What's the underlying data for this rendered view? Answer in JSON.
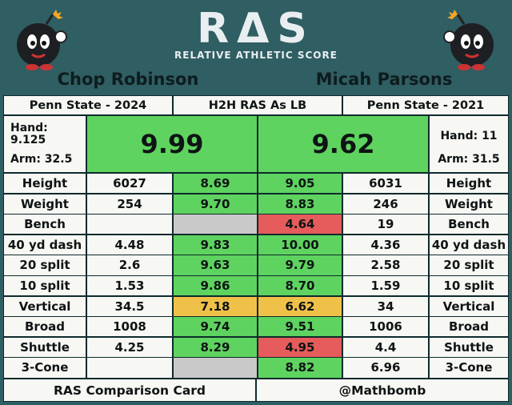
{
  "brand": {
    "logo": "RΔS",
    "tagline": "RELATIVE ATHLETIC SCORE"
  },
  "players": {
    "left": {
      "name": "Chop Robinson",
      "school": "Penn State - 2024",
      "hand_label": "Hand:",
      "hand_value": "9.125",
      "arm": "Arm: 32.5",
      "score": "9.99"
    },
    "right": {
      "name": "Micah Parsons",
      "school": "Penn State - 2021",
      "hand": "Hand: 11",
      "arm": "Arm: 31.5",
      "score": "9.62"
    }
  },
  "center_header": "H2H RAS As LB",
  "colors": {
    "background": "#2f5e63",
    "green": "#5ed35f",
    "grey": "#c9c9c9",
    "red": "#e65b5b",
    "yellow": "#f0c148"
  },
  "rows": [
    {
      "label": "Height",
      "left_val": "6027",
      "left_score": "8.69",
      "left_color": "green",
      "right_score": "9.05",
      "right_color": "green",
      "right_val": "6031"
    },
    {
      "label": "Weight",
      "left_val": "254",
      "left_score": "9.70",
      "left_color": "green",
      "right_score": "8.83",
      "right_color": "green",
      "right_val": "246"
    },
    {
      "label": "Bench",
      "left_val": "",
      "left_score": "",
      "left_color": "grey",
      "right_score": "4.64",
      "right_color": "red",
      "right_val": "19"
    },
    {
      "label": "40 yd dash",
      "left_val": "4.48",
      "left_score": "9.83",
      "left_color": "green",
      "right_score": "10.00",
      "right_color": "green",
      "right_val": "4.36"
    },
    {
      "label": "20 split",
      "left_val": "2.6",
      "left_score": "9.63",
      "left_color": "green",
      "right_score": "9.79",
      "right_color": "green",
      "right_val": "2.58"
    },
    {
      "label": "10 split",
      "left_val": "1.53",
      "left_score": "9.86",
      "left_color": "green",
      "right_score": "8.70",
      "right_color": "green",
      "right_val": "1.59"
    },
    {
      "label": "Vertical",
      "left_val": "34.5",
      "left_score": "7.18",
      "left_color": "yellow",
      "right_score": "6.62",
      "right_color": "yellow",
      "right_val": "34"
    },
    {
      "label": "Broad",
      "left_val": "1008",
      "left_score": "9.74",
      "left_color": "green",
      "right_score": "9.51",
      "right_color": "green",
      "right_val": "1006"
    },
    {
      "label": "Shuttle",
      "left_val": "4.25",
      "left_score": "8.29",
      "left_color": "green",
      "right_score": "4.95",
      "right_color": "red",
      "right_val": "4.4"
    },
    {
      "label": "3-Cone",
      "left_val": "",
      "left_score": "",
      "left_color": "grey",
      "right_score": "8.82",
      "right_color": "green",
      "right_val": "6.96"
    }
  ],
  "footer": {
    "left": "RAS Comparison Card",
    "right": "@Mathbomb"
  }
}
